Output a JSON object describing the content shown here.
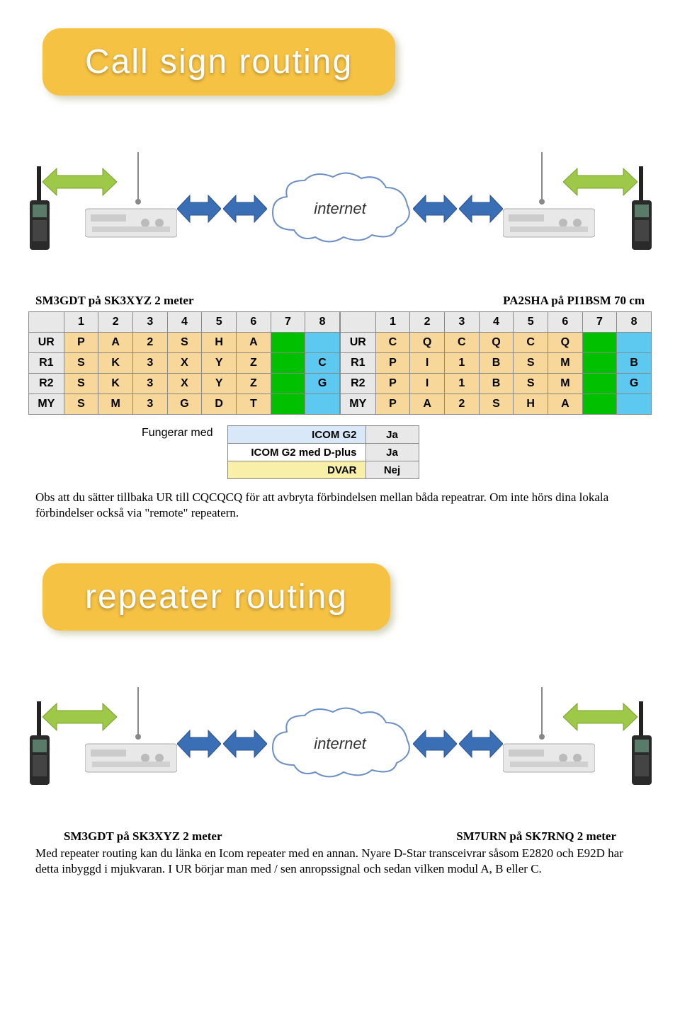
{
  "banner1": {
    "text": "Call sign routing",
    "bg": "#f6c244",
    "text_color": "#ffffff"
  },
  "banner2": {
    "text": "repeater routing",
    "bg": "#f6c244",
    "text_color": "#ffffff"
  },
  "cloud_label": "internet",
  "colors": {
    "header_bg": "#e8e8e8",
    "cell_bg": "#f8d89a",
    "green_bg": "#00c000",
    "blue_bg": "#5dc8f0",
    "compat_bg1": "#d8e8f8",
    "compat_bg2": "#f8f0a8",
    "compat_val_bg": "#e8e8e8",
    "arrow_blue": "#3b6fb5",
    "arrow_green": "#9ec847",
    "cloud_stroke": "#6b8fc5"
  },
  "caption_left": "SM3GDT på SK3XYZ  2 meter",
  "caption_right": "PA2SHA på PI1BSM  70 cm",
  "table_left": {
    "headers": [
      "1",
      "2",
      "3",
      "4",
      "5",
      "6",
      "7",
      "8"
    ],
    "row_labels": [
      "UR",
      "R1",
      "R2",
      "MY"
    ],
    "rows": [
      [
        "P",
        "A",
        "2",
        "S",
        "H",
        "A",
        "",
        ""
      ],
      [
        "S",
        "K",
        "3",
        "X",
        "Y",
        "Z",
        "",
        "C"
      ],
      [
        "S",
        "K",
        "3",
        "X",
        "Y",
        "Z",
        "",
        "G"
      ],
      [
        "S",
        "M",
        "3",
        "G",
        "D",
        "T",
        "",
        ""
      ]
    ],
    "col7_bg": "green",
    "col8_bg": "blue"
  },
  "table_right": {
    "headers": [
      "1",
      "2",
      "3",
      "4",
      "5",
      "6",
      "7",
      "8"
    ],
    "row_labels": [
      "UR",
      "R1",
      "R2",
      "MY"
    ],
    "rows": [
      [
        "C",
        "Q",
        "C",
        "Q",
        "C",
        "Q",
        "",
        ""
      ],
      [
        "P",
        "I",
        "1",
        "B",
        "S",
        "M",
        "",
        "B"
      ],
      [
        "P",
        "I",
        "1",
        "B",
        "S",
        "M",
        "",
        "G"
      ],
      [
        "P",
        "A",
        "2",
        "S",
        "H",
        "A",
        "",
        ""
      ]
    ]
  },
  "compat_label": "Fungerar med",
  "compat": [
    {
      "name": "ICOM G2",
      "val": "Ja",
      "bg": "#d8e8f8"
    },
    {
      "name": "ICOM G2 med D-plus",
      "val": "Ja",
      "bg": "#ffffff"
    },
    {
      "name": "DVAR",
      "val": "Nej",
      "bg": "#f8f0a8"
    }
  ],
  "para1": "Obs att du sätter tillbaka UR till CQCQCQ för att avbryta förbindelsen mellan båda repeatrar. Om inte hörs dina lokala förbindelser också via \"remote\" repeatern.",
  "caption2_left": "SM3GDT på SK3XYZ 2 meter",
  "caption2_right": "SM7URN på SK7RNQ 2 meter",
  "para2": "Med repeater routing kan du länka en Icom repeater med en annan. Nyare D-Star transceivrar såsom E2820 och E92D har detta inbyggd i mjukvaran. I UR börjar man med / sen anropssignal och sedan vilken modul A, B eller C."
}
